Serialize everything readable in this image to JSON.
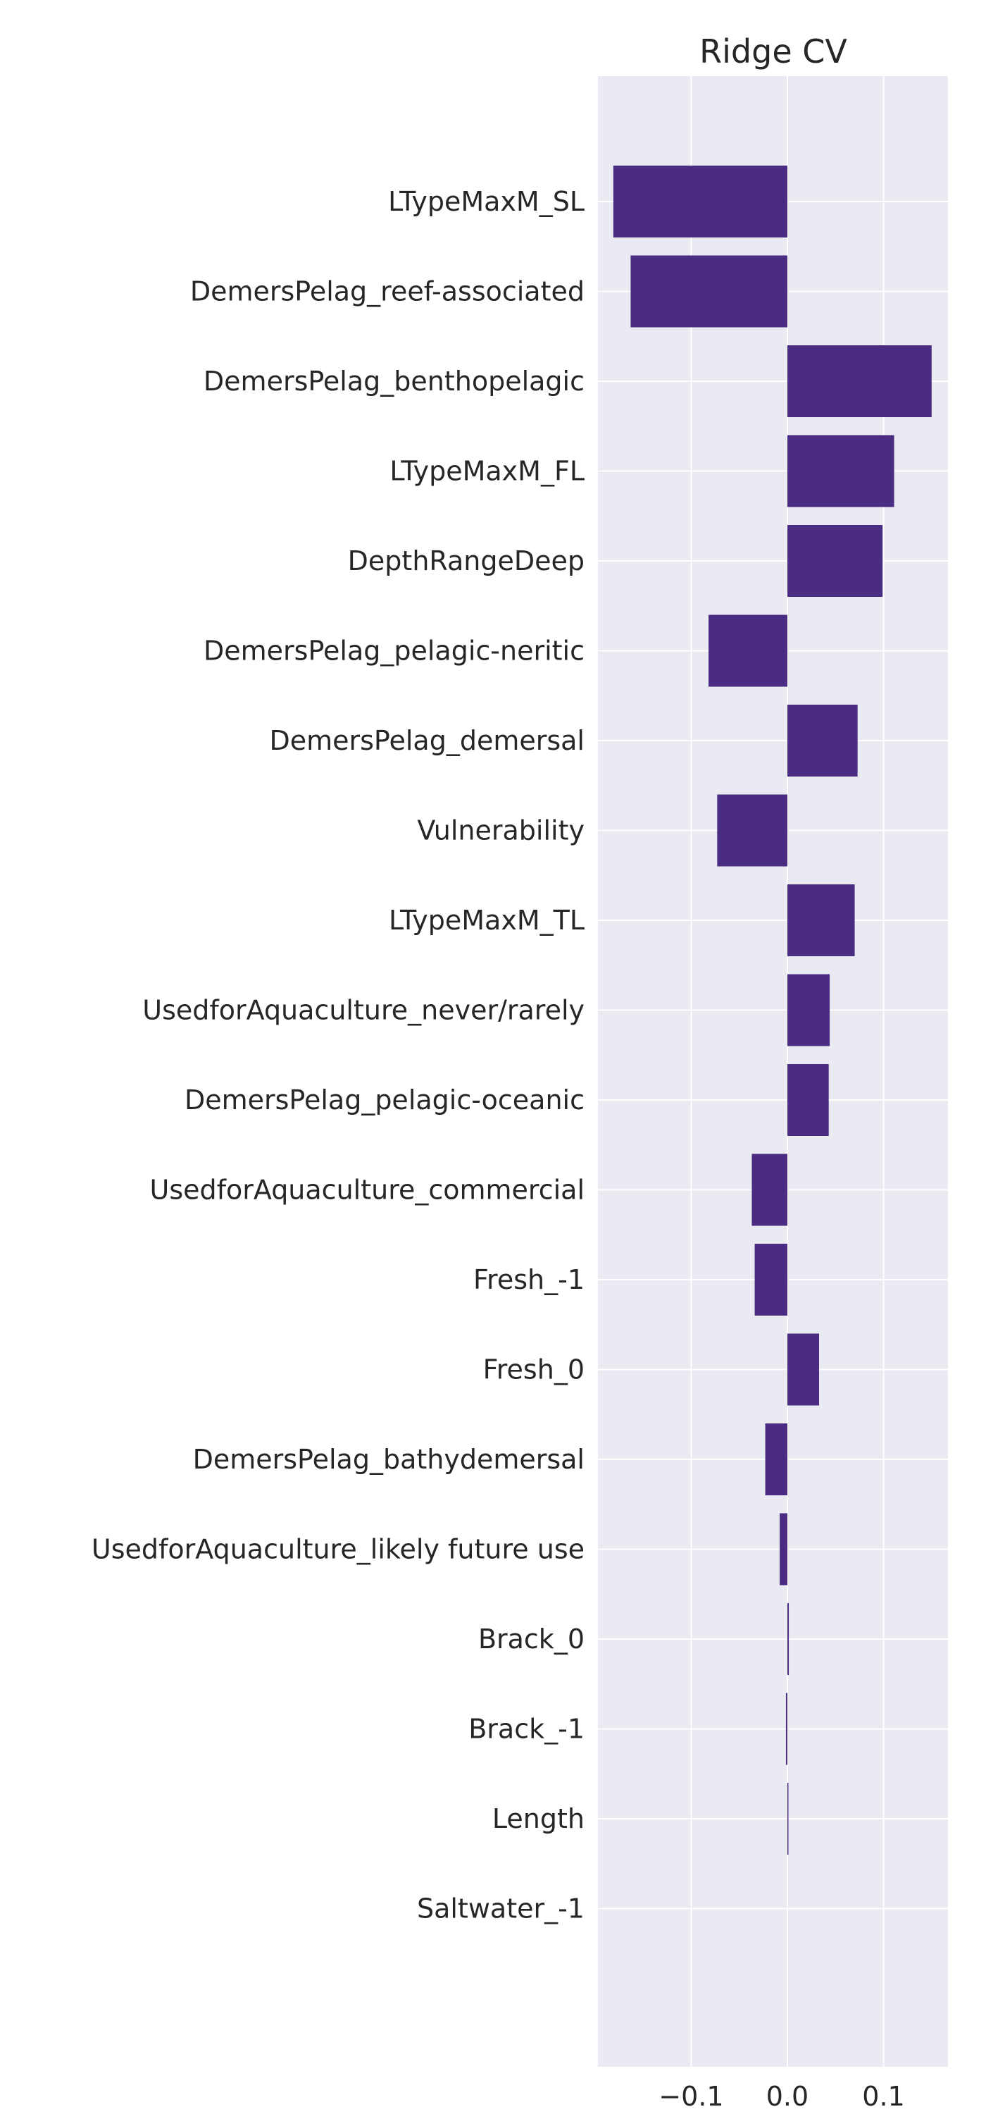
{
  "chart_data": {
    "type": "bar",
    "orientation": "horizontal",
    "title": "Ridge CV",
    "xlabel": "",
    "ylabel": "",
    "xlim": [
      -0.197,
      0.167
    ],
    "xticks": [
      {
        "value": -0.1,
        "label": "−0.1"
      },
      {
        "value": 0.0,
        "label": "0.0"
      },
      {
        "value": 0.1,
        "label": "0.1"
      }
    ],
    "grid": true,
    "bar_color": "#4B2C83",
    "background_color": "#EAEAF2",
    "categories": [
      "LTypeMaxM_SL",
      "DemersPelag_reef-associated",
      "DemersPelag_benthopelagic",
      "LTypeMaxM_FL",
      "DepthRangeDeep",
      "DemersPelag_pelagic-neritic",
      "DemersPelag_demersal",
      "Vulnerability",
      "LTypeMaxM_TL",
      "UsedforAquaculture_never/rarely",
      "DemersPelag_pelagic-oceanic",
      "UsedforAquaculture_commercial",
      "Fresh_-1",
      "Fresh_0",
      "DemersPelag_bathydemersal",
      "UsedforAquaculture_likely future use",
      "Brack_0",
      "Brack_-1",
      "Length",
      "Saltwater_-1"
    ],
    "values": [
      -0.181,
      -0.163,
      0.15,
      0.111,
      0.099,
      -0.082,
      0.073,
      -0.073,
      0.07,
      0.044,
      0.043,
      -0.037,
      -0.034,
      0.033,
      -0.023,
      -0.008,
      0.0015,
      -0.0015,
      0.0008,
      0.0
    ]
  }
}
